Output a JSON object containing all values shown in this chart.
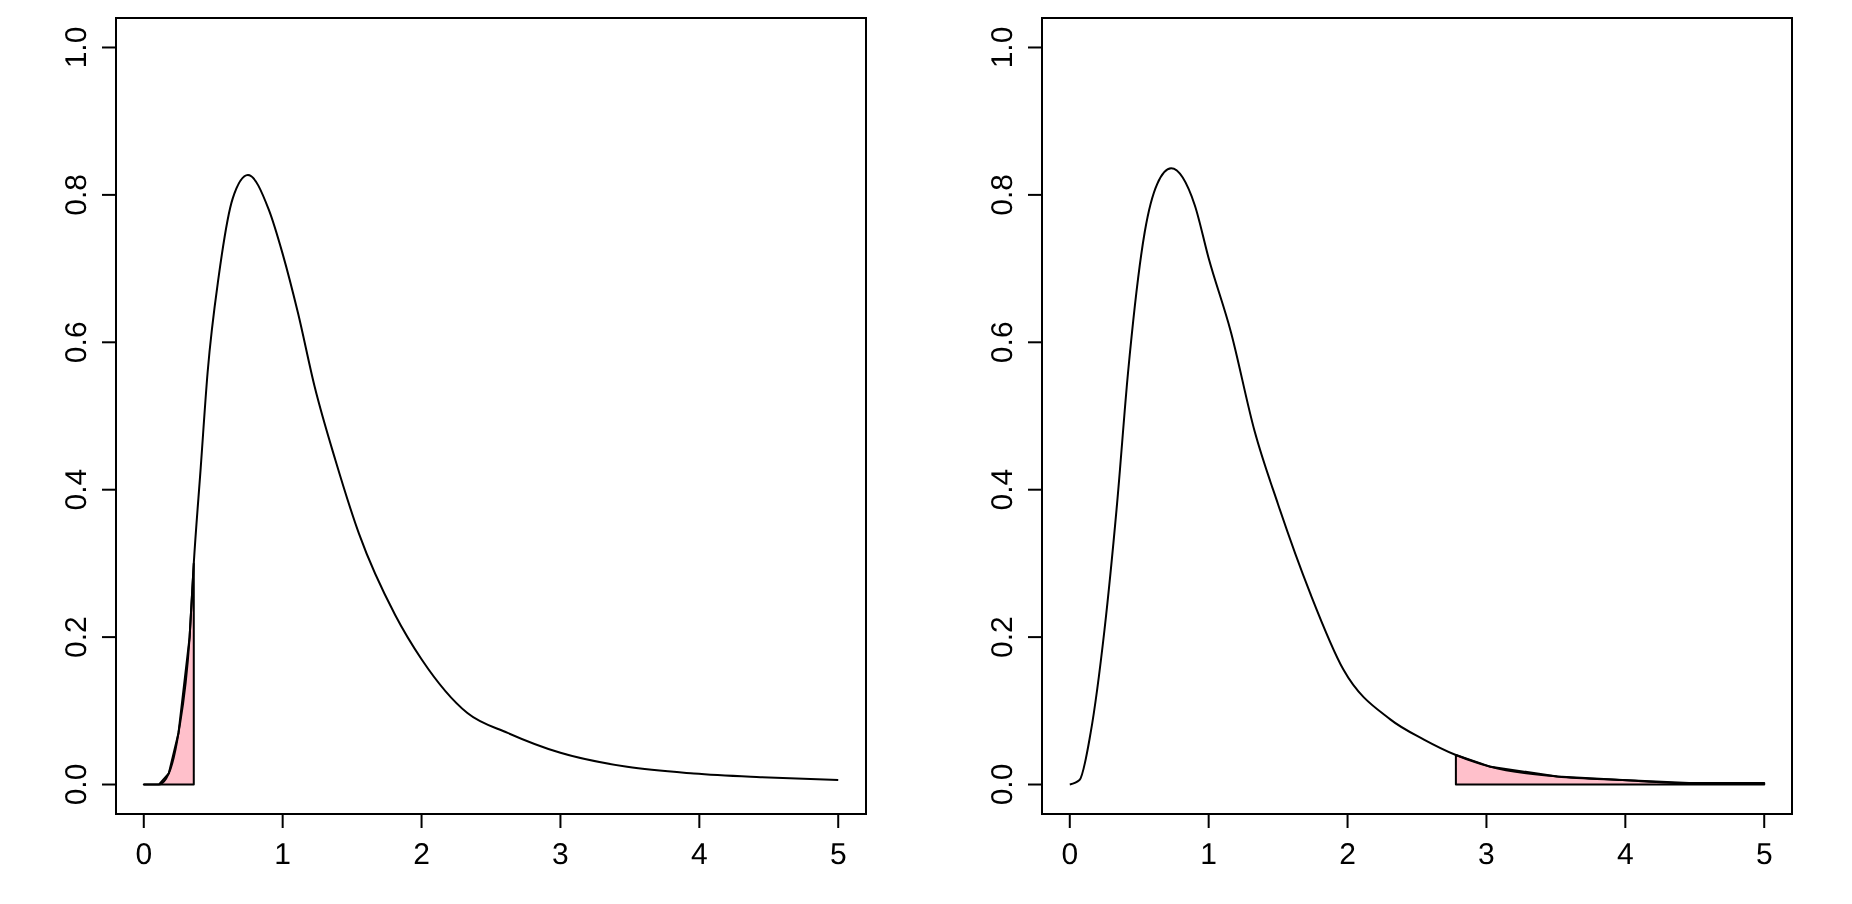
{
  "chart_data": [
    {
      "type": "line",
      "xlim": [
        -0.2,
        5.2
      ],
      "ylim": [
        -0.04,
        1.04
      ],
      "xticks": [
        0,
        1,
        2,
        3,
        4,
        5
      ],
      "yticks": [
        {
          "value": 0,
          "label": "0.0"
        },
        {
          "value": 0.2,
          "label": "0.2"
        },
        {
          "value": 0.4,
          "label": "0.4"
        },
        {
          "value": 0.6,
          "label": "0.6"
        },
        {
          "value": 0.8,
          "label": "0.8"
        },
        {
          "value": 1,
          "label": "1.0"
        }
      ],
      "series": [
        {
          "type": "area",
          "color": "#ffc0cb",
          "x": [
            0,
            0.11,
            0.18,
            0.25,
            0.33,
            0.36
          ],
          "values": [
            0,
            0,
            0.015,
            0.07,
            0.2,
            0.3
          ]
        },
        {
          "color": "#000000",
          "x": [
            0,
            0.11,
            0.18,
            0.25,
            0.33,
            0.36,
            0.41,
            0.46,
            0.54,
            0.64,
            0.75,
            0.9,
            1.0,
            1.11,
            1.23,
            1.38,
            1.55,
            1.81,
            2.0,
            2.33,
            2.62,
            3.0,
            3.48,
            3.96,
            4.44,
            5
          ],
          "values": [
            0,
            0,
            0.015,
            0.07,
            0.2,
            0.3,
            0.43,
            0.56,
            0.69,
            0.795,
            0.827,
            0.78,
            0.72,
            0.64,
            0.54,
            0.44,
            0.34,
            0.23,
            0.17,
            0.097,
            0.07,
            0.043,
            0.024,
            0.015,
            0.01,
            0.006
          ]
        }
      ]
    },
    {
      "type": "line",
      "xlim": [
        -0.2,
        5.2
      ],
      "ylim": [
        -0.04,
        1.04
      ],
      "xticks": [
        0,
        1,
        2,
        3,
        4,
        5
      ],
      "yticks": [
        {
          "value": 0,
          "label": "0.0"
        },
        {
          "value": 0.2,
          "label": "0.2"
        },
        {
          "value": 0.4,
          "label": "0.4"
        },
        {
          "value": 0.6,
          "label": "0.6"
        },
        {
          "value": 0.8,
          "label": "0.8"
        },
        {
          "value": 1,
          "label": "1.0"
        }
      ],
      "series": [
        {
          "type": "area",
          "color": "#ffc0cb",
          "x": [
            2.78,
            3.03,
            3.51,
            3.98,
            4.46,
            5
          ],
          "values": [
            0.04,
            0.024,
            0.011,
            0.006,
            0.002,
            0.002
          ]
        },
        {
          "color": "#000000",
          "x": [
            0,
            0.07,
            0.15,
            0.25,
            0.34,
            0.42,
            0.54,
            0.63,
            0.73,
            0.9,
            1.0,
            1.16,
            1.33,
            1.5,
            1.73,
            1.97,
            2.31,
            2.55,
            2.78,
            3.03,
            3.51,
            3.98,
            4.46,
            5
          ],
          "values": [
            0,
            0.006,
            0.07,
            0.21,
            0.38,
            0.56,
            0.75,
            0.815,
            0.836,
            0.786,
            0.714,
            0.614,
            0.48,
            0.38,
            0.26,
            0.156,
            0.088,
            0.061,
            0.04,
            0.024,
            0.011,
            0.006,
            0.002,
            0.002
          ]
        }
      ]
    }
  ]
}
